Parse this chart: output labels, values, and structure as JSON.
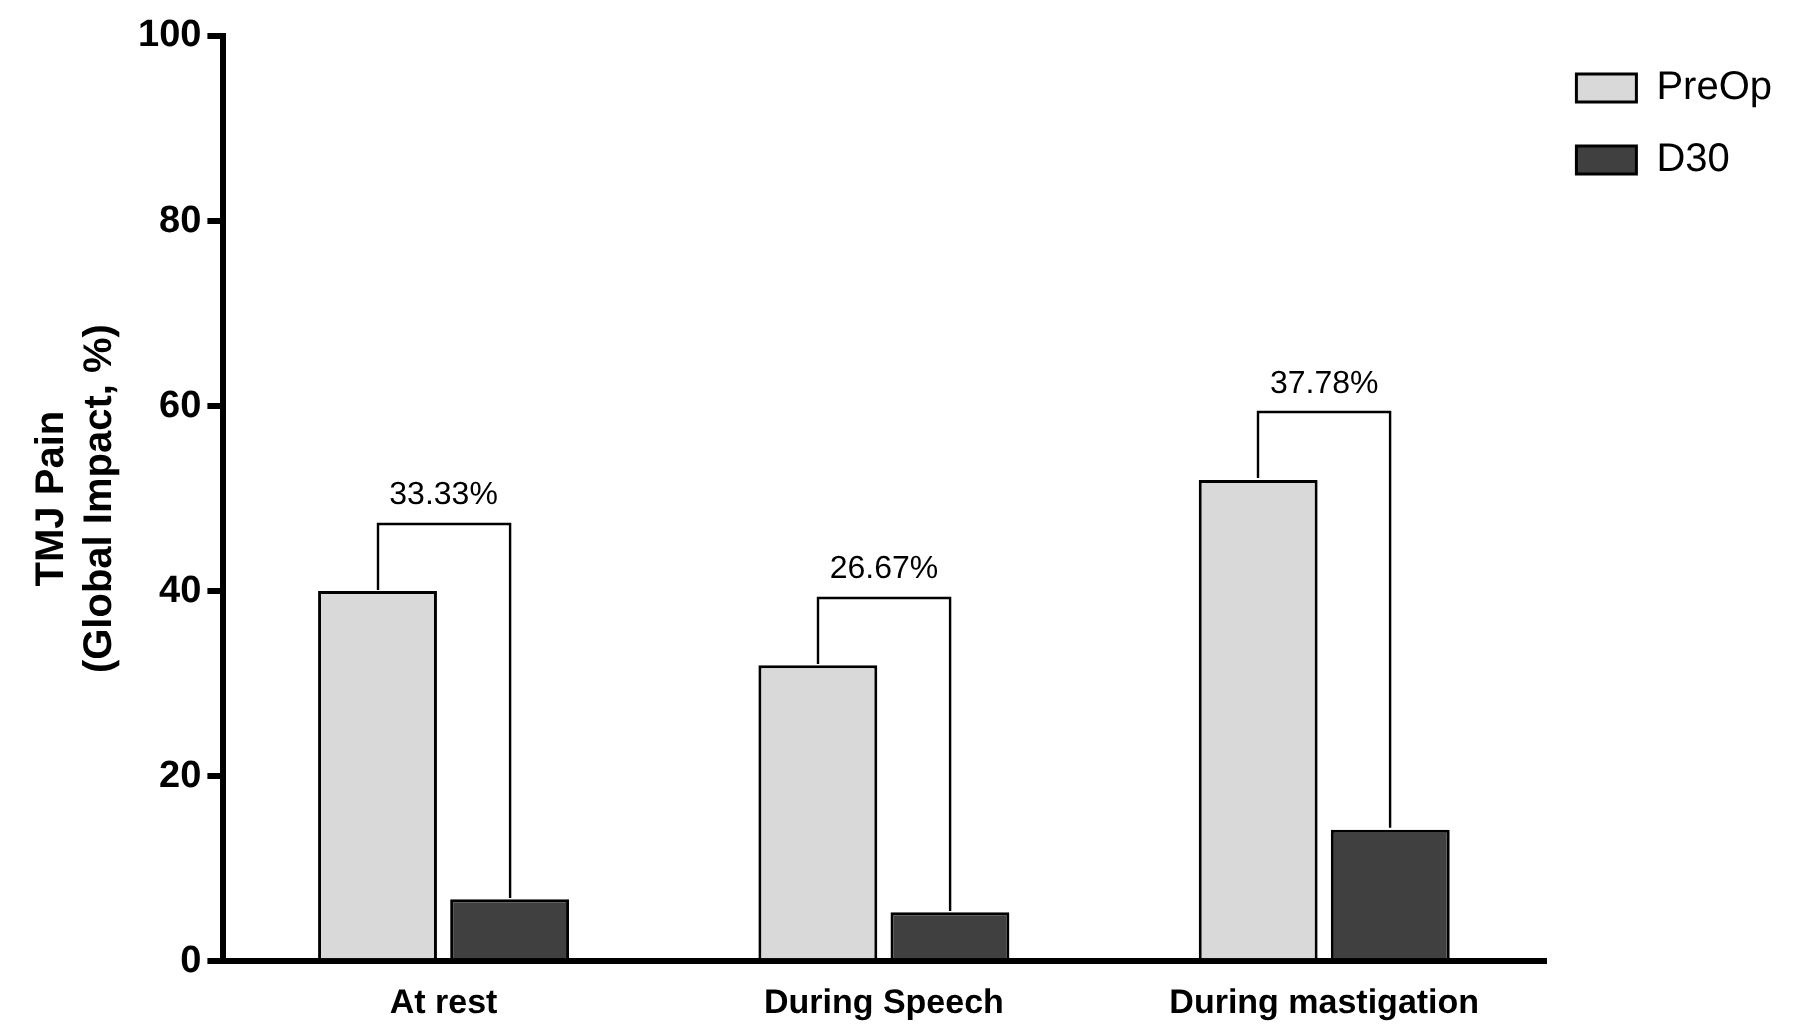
{
  "chart_data": {
    "type": "bar",
    "ylabel": "TMJ Pain\n(Global Impact, %)",
    "categories": [
      "At rest",
      "During Speech",
      "During mastigation"
    ],
    "series": [
      {
        "name": "PreOp",
        "color": "#d9d9d9",
        "values": [
          40,
          32,
          52
        ]
      },
      {
        "name": "D30",
        "color": "#404040",
        "values": [
          6.7,
          5.3,
          14.2
        ]
      }
    ],
    "ylim": [
      0,
      100
    ],
    "yticks": [
      0,
      20,
      40,
      60,
      80,
      100
    ],
    "grid": false,
    "legend": "top right",
    "annotations": [
      "33.33%",
      "26.67%",
      "37.78%"
    ]
  }
}
